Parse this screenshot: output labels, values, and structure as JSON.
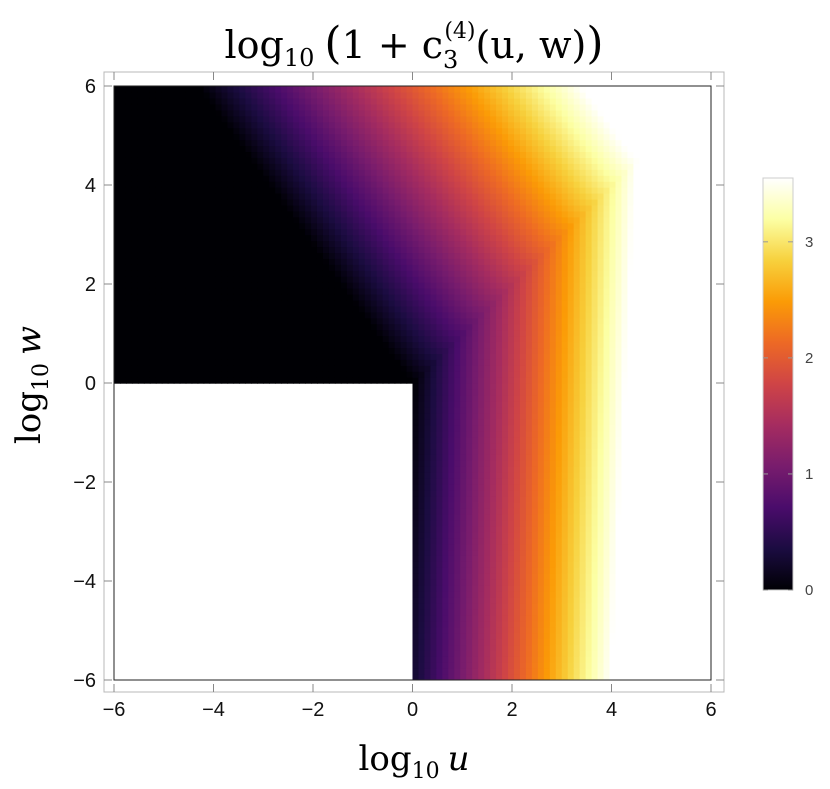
{
  "chart_data": {
    "type": "heatmap",
    "title": {
      "log": "log",
      "sub": "10",
      "open_paren": "(",
      "one_plus": "1 + c",
      "c_sub": "3",
      "c_sup": "(4)",
      "args": "(u, w)",
      "close_paren": ")"
    },
    "xlabel": {
      "log": "log",
      "sub": "10",
      "var": "u"
    },
    "ylabel": {
      "log": "log",
      "sub": "10",
      "var": "w"
    },
    "xlim": [
      -6,
      6
    ],
    "ylim": [
      -6,
      6
    ],
    "x_ticks": [
      {
        "value": -6,
        "label": "−6"
      },
      {
        "value": -4,
        "label": "−4"
      },
      {
        "value": -2,
        "label": "−2"
      },
      {
        "value": 0,
        "label": "0"
      },
      {
        "value": 2,
        "label": "2"
      },
      {
        "value": 4,
        "label": "4"
      },
      {
        "value": 6,
        "label": "6"
      }
    ],
    "y_ticks": [
      {
        "value": -6,
        "label": "−6"
      },
      {
        "value": -4,
        "label": "−4"
      },
      {
        "value": -2,
        "label": "−2"
      },
      {
        "value": 0,
        "label": "0"
      },
      {
        "value": 2,
        "label": "2"
      },
      {
        "value": 4,
        "label": "4"
      },
      {
        "value": 6,
        "label": "6"
      }
    ],
    "colorbar": {
      "range": [
        0,
        3.55
      ],
      "ticks": [
        {
          "value": 0,
          "label": "0"
        },
        {
          "value": 1,
          "label": "1"
        },
        {
          "value": 2,
          "label": "2"
        },
        {
          "value": 3,
          "label": "3"
        }
      ],
      "placement": "right",
      "colormap": [
        "#000004",
        "#1b0c41",
        "#4a0c6b",
        "#781c6d",
        "#a52c60",
        "#cf4446",
        "#ed6925",
        "#fb9b06",
        "#f7d13d",
        "#fcffa4",
        "#ffffff"
      ]
    },
    "undefined_region": "white where log10 u < 0 and log10 w < 0",
    "grid": false
  }
}
